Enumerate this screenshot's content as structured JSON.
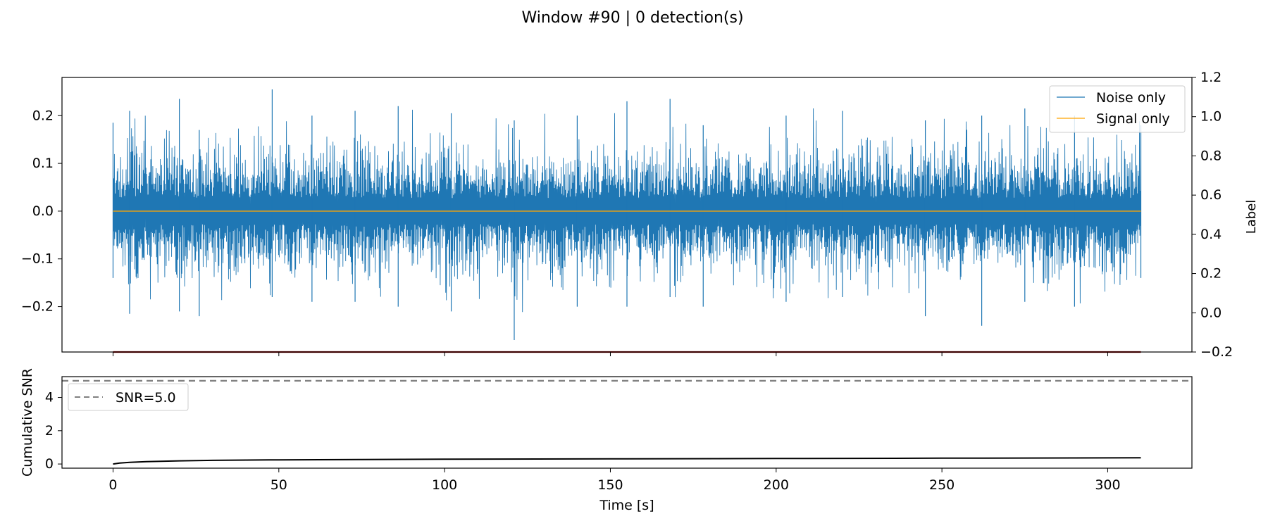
{
  "figure_title": "Window #90 | 0 detection(s)",
  "colors": {
    "noise": "#1f77b4",
    "signal": "#ffa500",
    "label_line": "#8b0000",
    "snr_curve": "#000000",
    "threshold": "#808080"
  },
  "chart_data": [
    {
      "type": "line",
      "panel": "top",
      "title": "",
      "xlabel": "",
      "ylabel": "",
      "y2label": "Label",
      "xlim": [
        -15.4,
        325.4
      ],
      "ylim": [
        -0.295,
        0.28
      ],
      "y2lim": [
        -0.2,
        1.2
      ],
      "yticks": [
        -0.2,
        -0.1,
        0.0,
        0.1,
        0.2
      ],
      "ytick_labels": [
        "−0.2",
        "−0.1",
        "0.0",
        "0.1",
        "0.2"
      ],
      "y2ticks": [
        -0.2,
        0.0,
        0.2,
        0.4,
        0.6,
        0.8,
        1.0,
        1.2
      ],
      "y2tick_labels": [
        "−0.2",
        "0.0",
        "0.2",
        "0.4",
        "0.6",
        "0.8",
        "1.0",
        "1.2"
      ],
      "xticks": [
        0,
        50,
        100,
        150,
        200,
        250,
        300
      ],
      "legend_position": "top-right",
      "series": [
        {
          "name": "Noise only",
          "axis": "left",
          "kind": "noise-trace",
          "x_range": [
            0,
            310
          ],
          "typical_amplitude": 0.11,
          "envelope": [
            [
              0,
              0.185,
              -0.14
            ],
            [
              5,
              0.21,
              -0.215
            ],
            [
              20,
              0.235,
              -0.21
            ],
            [
              26,
              0.17,
              -0.22
            ],
            [
              48,
              0.255,
              -0.18
            ],
            [
              60,
              0.2,
              -0.19
            ],
            [
              73,
              0.21,
              -0.19
            ],
            [
              86,
              0.22,
              -0.2
            ],
            [
              102,
              0.205,
              -0.21
            ],
            [
              121,
              0.19,
              -0.27
            ],
            [
              140,
              0.2,
              -0.2
            ],
            [
              155,
              0.23,
              -0.2
            ],
            [
              168,
              0.235,
              -0.18
            ],
            [
              178,
              0.18,
              -0.2
            ],
            [
              203,
              0.2,
              -0.19
            ],
            [
              220,
              0.21,
              -0.18
            ],
            [
              245,
              0.19,
              -0.22
            ],
            [
              262,
              0.2,
              -0.24
            ],
            [
              275,
              0.215,
              -0.19
            ],
            [
              290,
              0.2,
              -0.2
            ],
            [
              310,
              0.18,
              -0.14
            ]
          ]
        },
        {
          "name": "Signal only",
          "axis": "left",
          "x": [
            0,
            310
          ],
          "y": [
            0.0,
            0.0
          ]
        },
        {
          "axis": "right",
          "x": [
            0,
            310
          ],
          "y": [
            -0.2,
            -0.2
          ]
        }
      ]
    },
    {
      "type": "line",
      "panel": "bottom",
      "title": "",
      "xlabel": "Time [s]",
      "ylabel": "Cumulative SNR",
      "xlim": [
        -15.4,
        325.4
      ],
      "ylim": [
        -0.25,
        5.25
      ],
      "yticks": [
        0,
        2,
        4
      ],
      "xticks": [
        0,
        50,
        100,
        150,
        200,
        250,
        300
      ],
      "xtick_labels": [
        "0",
        "50",
        "100",
        "150",
        "200",
        "250",
        "300"
      ],
      "legend_position": "top-left",
      "series": [
        {
          "axis": "left",
          "x": [
            0,
            2,
            5,
            10,
            20,
            30,
            50,
            75,
            100,
            150,
            200,
            250,
            310
          ],
          "y": [
            0.0,
            0.06,
            0.1,
            0.14,
            0.19,
            0.22,
            0.25,
            0.27,
            0.29,
            0.31,
            0.33,
            0.35,
            0.37
          ]
        },
        {
          "name": "SNR=5.0",
          "axis": "left",
          "style": "dashed",
          "x": [
            -15.4,
            325.4
          ],
          "y": [
            5.0,
            5.0
          ]
        }
      ]
    }
  ]
}
